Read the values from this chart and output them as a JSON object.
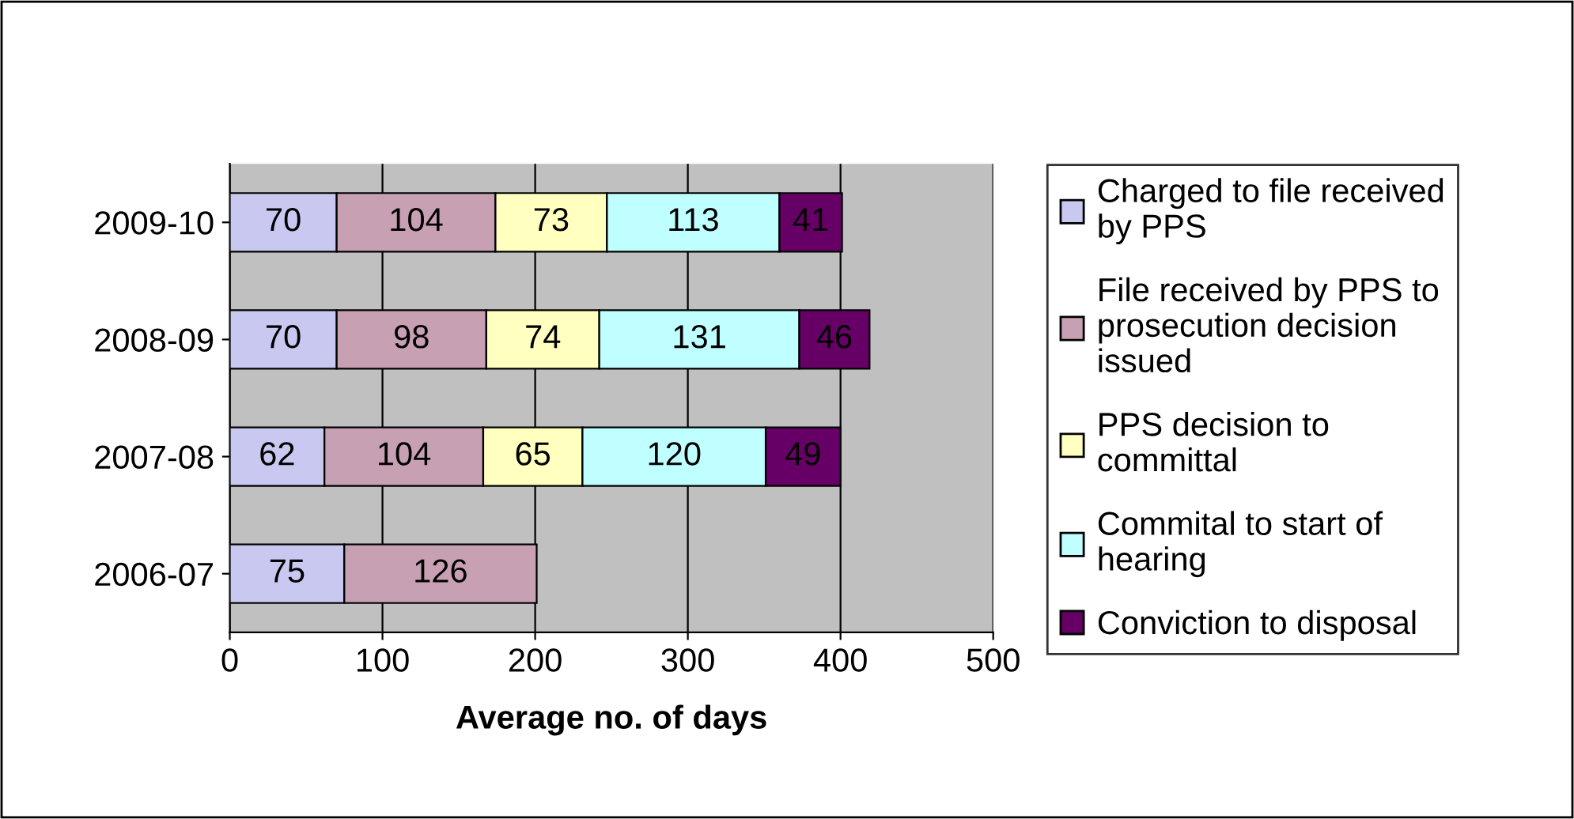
{
  "chart_data": {
    "type": "bar",
    "orientation": "horizontal",
    "stacked": true,
    "categories": [
      "2009-10",
      "2008-09",
      "2007-08",
      "2006-07"
    ],
    "series": [
      {
        "name": "Charged to file received by PPS",
        "color": "#c8c8f0",
        "values": [
          70,
          70,
          62,
          75
        ]
      },
      {
        "name": "File received by PPS to prosecution decision issued",
        "color": "#c8a0b4",
        "values": [
          104,
          98,
          104,
          126
        ]
      },
      {
        "name": "PPS decision to committal",
        "color": "#ffffc0",
        "values": [
          73,
          74,
          65,
          null
        ]
      },
      {
        "name": "Commital to start of hearing",
        "color": "#c0ffff",
        "values": [
          113,
          131,
          120,
          null
        ]
      },
      {
        "name": "Conviction to disposal",
        "color": "#660066",
        "values": [
          41,
          46,
          49,
          null
        ]
      }
    ],
    "xlim": [
      0,
      500
    ],
    "xticks": [
      0,
      100,
      200,
      300,
      400,
      500
    ],
    "xlabel": "Average no. of days",
    "grid": "x",
    "legend": "right",
    "data_labels": true
  }
}
